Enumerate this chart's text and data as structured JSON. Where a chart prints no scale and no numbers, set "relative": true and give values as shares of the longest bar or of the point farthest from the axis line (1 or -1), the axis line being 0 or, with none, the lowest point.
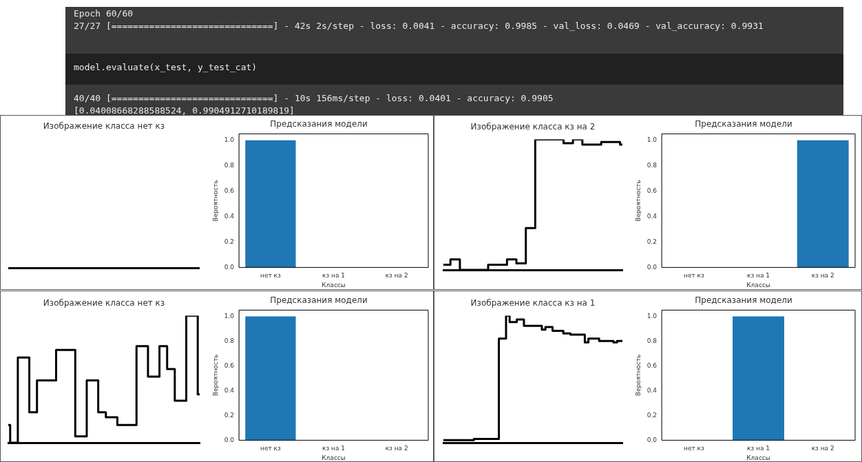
{
  "chart_data": [
    {
      "type": "other",
      "annotations": [
        "Epoch 60/60",
        "27/27 [==============================] - 42s 2s/step - loss: 0.0041 - accuracy: 0.9985 - val_loss: 0.0469 - val_accuracy: 0.9931",
        "model.evaluate(x_test, y_test_cat)",
        "40/40 [==============================] - 10s 156ms/step - loss: 0.0401 - accuracy: 0.9905",
        "[0.04008668288588524, 0.9904912710189819]"
      ]
    },
    {
      "type": "other",
      "title": "Изображение класса нет кз"
    },
    {
      "type": "bar",
      "title": "Предсказания модели",
      "xlabel": "Классы",
      "ylabel": "Вероятность",
      "color": "#1f77b4",
      "categories": [
        "нет кз",
        "кз на 1",
        "кз на 2"
      ],
      "values": [
        1,
        0,
        0
      ],
      "ylim": [
        0,
        1.05
      ],
      "yticks": [
        {
          "value": 0,
          "label": "0.0"
        },
        {
          "value": 0.2,
          "label": "0.2"
        },
        {
          "value": 0.4,
          "label": "0.4"
        },
        {
          "value": 0.6,
          "label": "0.6"
        },
        {
          "value": 0.8,
          "label": "0.8"
        },
        {
          "value": 1,
          "label": "1.0"
        }
      ]
    },
    {
      "type": "step",
      "title": "Изображение класса кз на 2",
      "relative": true,
      "color": "#000000",
      "categories": [
        null,
        null,
        null,
        null,
        null,
        null,
        null,
        null,
        null,
        null,
        null,
        null,
        null,
        null,
        null,
        null,
        null,
        null,
        null,
        null,
        null,
        null,
        null,
        null,
        null,
        null,
        null,
        null,
        null,
        null,
        null,
        null,
        null,
        null,
        null,
        null,
        null,
        null,
        null
      ],
      "values": [
        0.04,
        0.04,
        0.08,
        0.08,
        0,
        0,
        0,
        0,
        0,
        0,
        0.04,
        0.04,
        0.04,
        0.04,
        0.08,
        0.08,
        0.05,
        0.05,
        0.32,
        0.32,
        1,
        1,
        1,
        1,
        1,
        1,
        0.97,
        0.97,
        1,
        1,
        0.96,
        0.96,
        0.96,
        0.96,
        0.98,
        0.98,
        0.98,
        0.98,
        0.96
      ]
    },
    {
      "type": "bar",
      "title": "Предсказания модели",
      "xlabel": "Классы",
      "ylabel": "Вероятность",
      "color": "#1f77b4",
      "categories": [
        "нет кз",
        "кз на 1",
        "кз на 2"
      ],
      "values": [
        0,
        0,
        1
      ],
      "ylim": [
        0,
        1.05
      ],
      "yticks": [
        {
          "value": 0,
          "label": "0.0"
        },
        {
          "value": 0.2,
          "label": "0.2"
        },
        {
          "value": 0.4,
          "label": "0.4"
        },
        {
          "value": 0.6,
          "label": "0.6"
        },
        {
          "value": 0.8,
          "label": "0.8"
        },
        {
          "value": 1,
          "label": "1.0"
        }
      ]
    },
    {
      "type": "step",
      "title": "Изображение класса нет кз",
      "relative": true,
      "color": "#000000",
      "categories": [
        null,
        null,
        null,
        null,
        null,
        null,
        null,
        null,
        null,
        null,
        null,
        null,
        null,
        null,
        null,
        null,
        null,
        null,
        null,
        null,
        null,
        null,
        null,
        null,
        null,
        null,
        null,
        null,
        null,
        null,
        null,
        null,
        null,
        null,
        null,
        null,
        null,
        null,
        null,
        null,
        null,
        null,
        null,
        null,
        null,
        null,
        null,
        null,
        null,
        null,
        null
      ],
      "values": [
        0.14,
        0,
        0,
        0.67,
        0.67,
        0.67,
        0.24,
        0.24,
        0.49,
        0.49,
        0.49,
        0.49,
        0.49,
        0.73,
        0.73,
        0.73,
        0.73,
        0.73,
        0.05,
        0.05,
        0.05,
        0.49,
        0.49,
        0.49,
        0.24,
        0.24,
        0.2,
        0.2,
        0.2,
        0.14,
        0.14,
        0.14,
        0.14,
        0.14,
        0.76,
        0.76,
        0.76,
        0.52,
        0.52,
        0.52,
        0.76,
        0.76,
        0.58,
        0.58,
        0.33,
        0.33,
        0.33,
        1,
        1,
        1,
        0.38
      ]
    },
    {
      "type": "bar",
      "title": "Предсказания модели",
      "xlabel": "Классы",
      "ylabel": "Вероятность",
      "color": "#1f77b4",
      "categories": [
        "нет кз",
        "кз на 1",
        "кз на 2"
      ],
      "values": [
        1,
        0,
        0
      ],
      "ylim": [
        0,
        1.05
      ],
      "yticks": [
        {
          "value": 0,
          "label": "0.0"
        },
        {
          "value": 0.2,
          "label": "0.2"
        },
        {
          "value": 0.4,
          "label": "0.4"
        },
        {
          "value": 0.6,
          "label": "0.6"
        },
        {
          "value": 0.8,
          "label": "0.8"
        },
        {
          "value": 1,
          "label": "1.0"
        }
      ]
    },
    {
      "type": "step",
      "title": "Изображение класса кз на 1",
      "relative": true,
      "color": "#000000",
      "categories": [
        null,
        null,
        null,
        null,
        null,
        null,
        null,
        null,
        null,
        null,
        null,
        null,
        null,
        null,
        null,
        null,
        null,
        null,
        null,
        null,
        null,
        null,
        null,
        null,
        null,
        null,
        null,
        null,
        null,
        null,
        null,
        null,
        null,
        null,
        null,
        null,
        null,
        null,
        null,
        null,
        null,
        null,
        null,
        null,
        null,
        null,
        null,
        null,
        null,
        null,
        null
      ],
      "values": [
        0.02,
        0.02,
        0.02,
        0.02,
        0.02,
        0.02,
        0.02,
        0.02,
        0.02,
        0.03,
        0.03,
        0.03,
        0.03,
        0.03,
        0.03,
        0.03,
        0.82,
        0.82,
        1,
        0.95,
        0.95,
        0.97,
        0.97,
        0.92,
        0.92,
        0.92,
        0.92,
        0.92,
        0.89,
        0.91,
        0.91,
        0.88,
        0.88,
        0.88,
        0.86,
        0.86,
        0.85,
        0.85,
        0.85,
        0.85,
        0.79,
        0.82,
        0.82,
        0.82,
        0.8,
        0.8,
        0.8,
        0.8,
        0.79,
        0.8,
        0.8
      ]
    },
    {
      "type": "bar",
      "title": "Предсказания модели",
      "xlabel": "Классы",
      "ylabel": "Вероятность",
      "color": "#1f77b4",
      "categories": [
        "нет кз",
        "кз на 1",
        "кз на 2"
      ],
      "values": [
        0,
        1,
        0
      ],
      "ylim": [
        0,
        1.05
      ],
      "yticks": [
        {
          "value": 0,
          "label": "0.0"
        },
        {
          "value": 0.2,
          "label": "0.2"
        },
        {
          "value": 0.4,
          "label": "0.4"
        },
        {
          "value": 0.6,
          "label": "0.6"
        },
        {
          "value": 0.8,
          "label": "0.8"
        },
        {
          "value": 1,
          "label": "1.0"
        }
      ]
    }
  ]
}
